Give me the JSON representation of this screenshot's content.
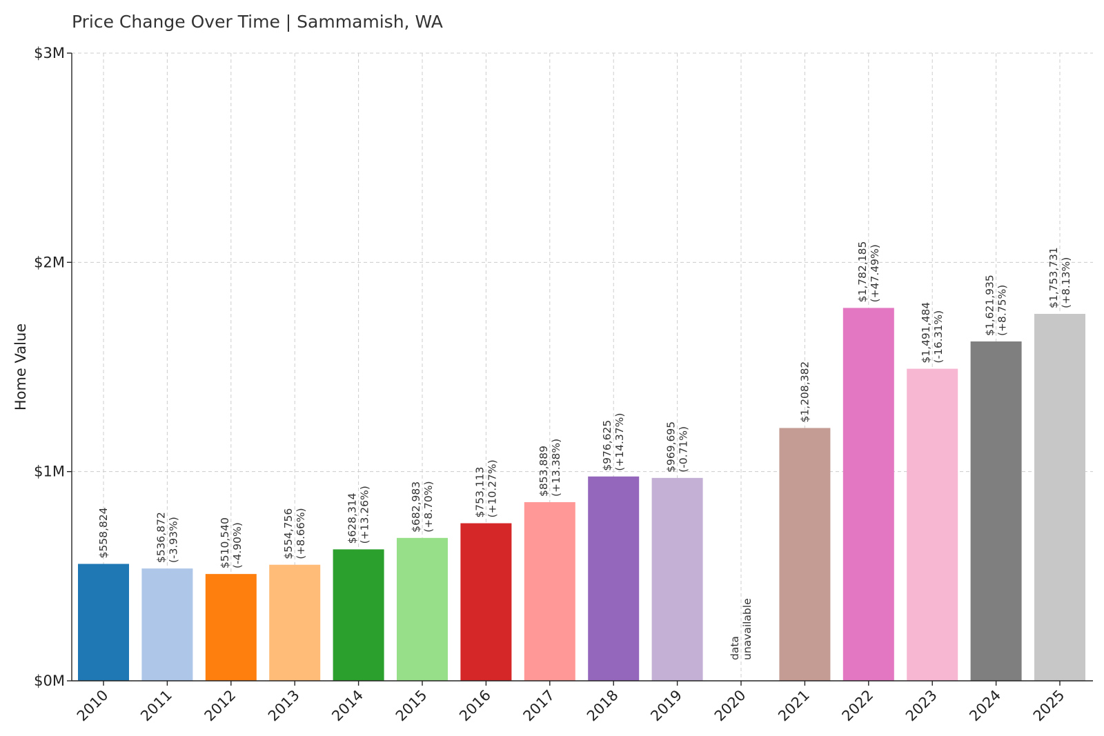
{
  "chart_data": {
    "type": "bar",
    "title": "Price Change Over Time | Sammamish, WA",
    "xlabel": "",
    "ylabel": "Home Value",
    "ylim": [
      0,
      3000000
    ],
    "yticks": [
      {
        "value": 0,
        "label": "$0M"
      },
      {
        "value": 1000000,
        "label": "$1M"
      },
      {
        "value": 2000000,
        "label": "$2M"
      },
      {
        "value": 3000000,
        "label": "$3M"
      }
    ],
    "grid": true,
    "categories": [
      "2010",
      "2011",
      "2012",
      "2013",
      "2014",
      "2015",
      "2016",
      "2017",
      "2018",
      "2019",
      "2020",
      "2021",
      "2022",
      "2023",
      "2024",
      "2025"
    ],
    "values": [
      558824,
      536872,
      510540,
      554756,
      628314,
      682983,
      753113,
      853889,
      976625,
      969695,
      null,
      1208382,
      1782185,
      1491484,
      1621935,
      1753731
    ],
    "value_labels": [
      "$558,824",
      "$536,872",
      "$510,540",
      "$554,756",
      "$628,314",
      "$682,983",
      "$753,113",
      "$853,889",
      "$976,625",
      "$969,695",
      "data",
      "$1,208,382",
      "$1,782,185",
      "$1,491,484",
      "$1,621,935",
      "$1,753,731"
    ],
    "change_labels": [
      "",
      "(-3.93%)",
      "(-4.90%)",
      "(+8.66%)",
      "(+13.26%)",
      "(+8.70%)",
      "(+10.27%)",
      "(+13.38%)",
      "(+14.37%)",
      "(-0.71%)",
      "unavailable",
      "",
      "(+47.49%)",
      "(-16.31%)",
      "(+8.75%)",
      "(+8.13%)"
    ],
    "colors": [
      "#1f77b4",
      "#aec7e8",
      "#ff7f0e",
      "#ffbb78",
      "#2ca02c",
      "#98df8a",
      "#d62728",
      "#ff9896",
      "#9467bd",
      "#c5b0d5",
      "#ffffff",
      "#c49c94",
      "#e377c2",
      "#f7b6d2",
      "#7f7f7f",
      "#c7c7c7"
    ]
  }
}
